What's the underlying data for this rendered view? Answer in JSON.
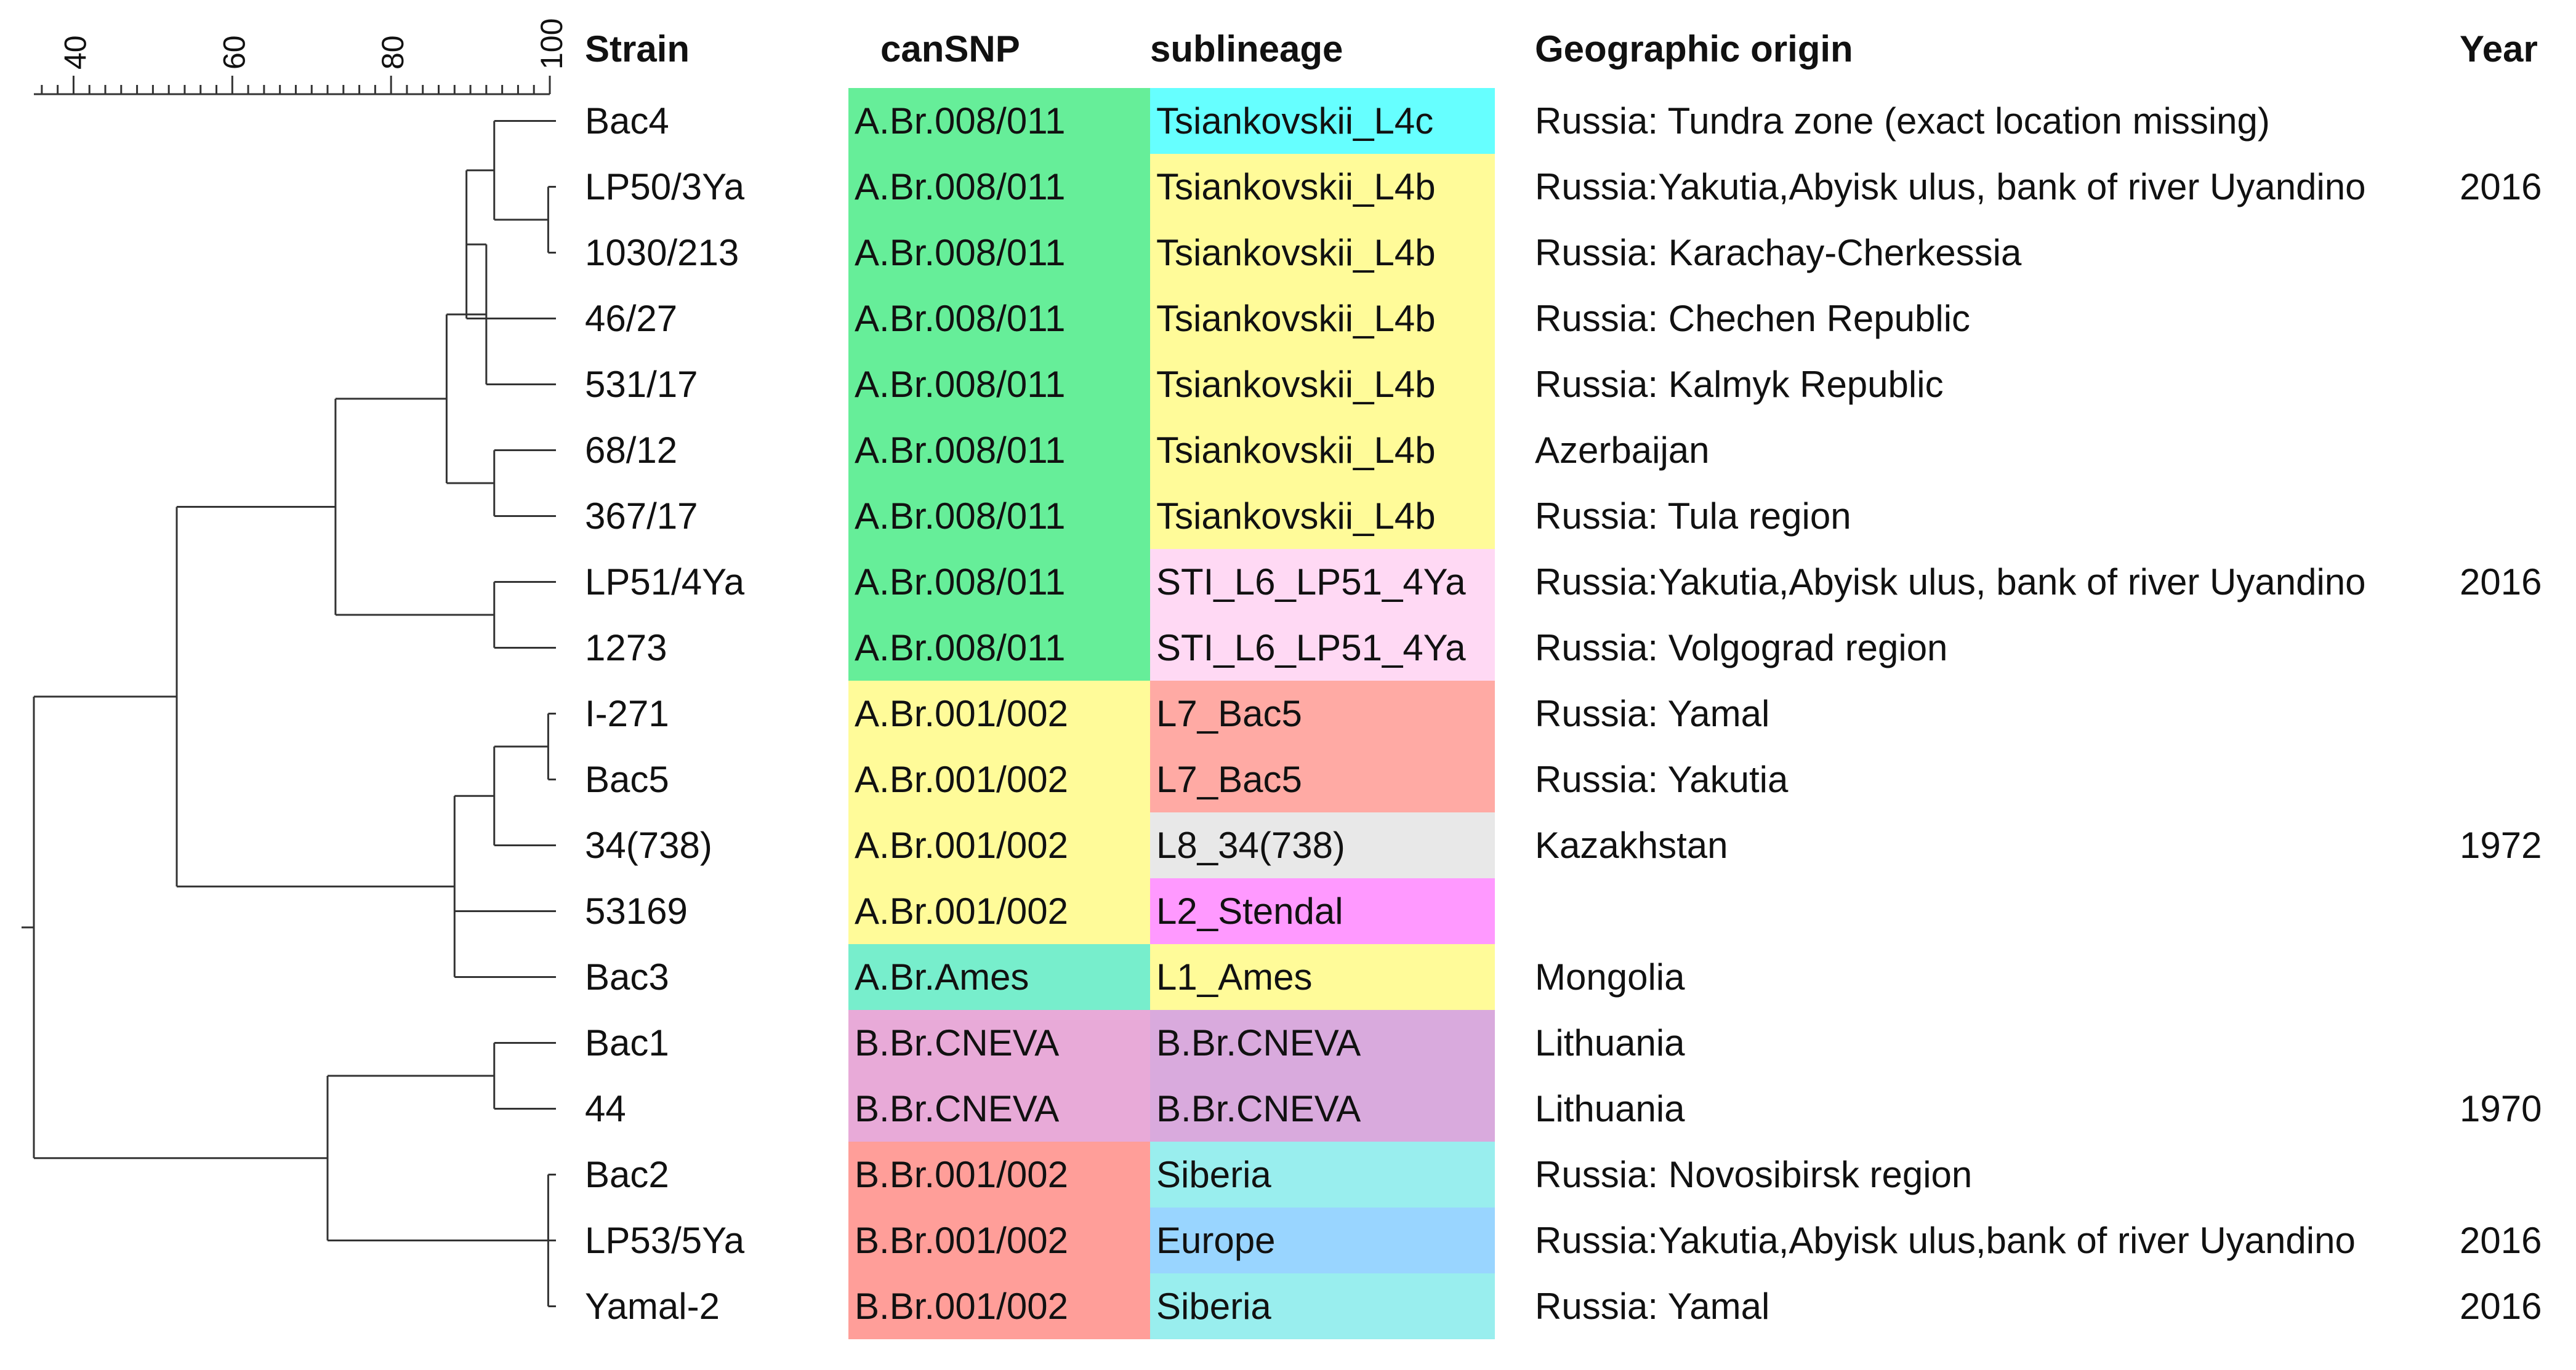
{
  "headers": {
    "strain": "Strain",
    "cansnp": "canSNP",
    "sublineage": "sublineage",
    "geo": "Geographic origin",
    "year": "Year"
  },
  "scale": {
    "ticks": [
      "40",
      "60",
      "80",
      "100"
    ],
    "min": 35,
    "max": 100
  },
  "colors": {
    "canSNP": {
      "A.Br.008/011": "#66ee99",
      "A.Br.001/002": "#fffb99",
      "A.Br.Ames": "#77eecc",
      "B.Br.CNEVA": "#e8aad8",
      "B.Br.001/002": "#ff9e99"
    },
    "sublineage": {
      "Tsiankovskii_L4c": "#66ffff",
      "Tsiankovskii_L4b": "#fffb99",
      "STI_L6_LP51_4Ya": "#ffd9f4",
      "L7_Bac5": "#ffaaa4",
      "L8_34(738)": "#e8e8e8",
      "L2_Stendal": "#ff99ff",
      "L1_Ames": "#fffb99",
      "B.Br.CNEVA": "#d9aadd",
      "Siberia": "#99eeee",
      "Europe": "#99d5ff"
    }
  },
  "rows": [
    {
      "strain": "Bac4",
      "cansnp": "A.Br.008/011",
      "sublineage": "Tsiankovskii_L4c",
      "geo": "Russia: Tundra zone (exact location missing)",
      "year": ""
    },
    {
      "strain": "LP50/3Ya",
      "cansnp": "A.Br.008/011",
      "sublineage": "Tsiankovskii_L4b",
      "geo": "Russia:Yakutia,Abyisk ulus, bank of river Uyandino",
      "year": "2016"
    },
    {
      "strain": "1030/213",
      "cansnp": "A.Br.008/011",
      "sublineage": "Tsiankovskii_L4b",
      "geo": "Russia: Karachay-Cherkessia",
      "year": ""
    },
    {
      "strain": "46/27",
      "cansnp": "A.Br.008/011",
      "sublineage": "Tsiankovskii_L4b",
      "geo": "Russia: Chechen Republic",
      "year": ""
    },
    {
      "strain": "531/17",
      "cansnp": "A.Br.008/011",
      "sublineage": "Tsiankovskii_L4b",
      "geo": "Russia: Kalmyk Republic",
      "year": ""
    },
    {
      "strain": "68/12",
      "cansnp": "A.Br.008/011",
      "sublineage": "Tsiankovskii_L4b",
      "geo": "Azerbaijan",
      "year": ""
    },
    {
      "strain": "367/17",
      "cansnp": "A.Br.008/011",
      "sublineage": "Tsiankovskii_L4b",
      "geo": "Russia: Tula region",
      "year": ""
    },
    {
      "strain": "LP51/4Ya",
      "cansnp": "A.Br.008/011",
      "sublineage": "STI_L6_LP51_4Ya",
      "geo": "Russia:Yakutia,Abyisk ulus, bank of river Uyandino",
      "year": "2016"
    },
    {
      "strain": "1273",
      "cansnp": "A.Br.008/011",
      "sublineage": "STI_L6_LP51_4Ya",
      "geo": "Russia: Volgograd region",
      "year": ""
    },
    {
      "strain": "I-271",
      "cansnp": "A.Br.001/002",
      "sublineage": "L7_Bac5",
      "geo": "Russia: Yamal",
      "year": ""
    },
    {
      "strain": "Bac5",
      "cansnp": "A.Br.001/002",
      "sublineage": "L7_Bac5",
      "geo": "Russia: Yakutia",
      "year": ""
    },
    {
      "strain": "34(738)",
      "cansnp": "A.Br.001/002",
      "sublineage": "L8_34(738)",
      "geo": "Kazakhstan",
      "year": "1972"
    },
    {
      "strain": "53169",
      "cansnp": "A.Br.001/002",
      "sublineage": "L2_Stendal",
      "geo": "",
      "year": ""
    },
    {
      "strain": "Bac3",
      "cansnp": "A.Br.Ames",
      "sublineage": "L1_Ames",
      "geo": "Mongolia",
      "year": ""
    },
    {
      "strain": "Bac1",
      "cansnp": "B.Br.CNEVA",
      "sublineage": "B.Br.CNEVA",
      "geo": "Lithuania",
      "year": ""
    },
    {
      "strain": "44",
      "cansnp": "B.Br.CNEVA",
      "sublineage": "B.Br.CNEVA",
      "geo": "Lithuania",
      "year": "1970"
    },
    {
      "strain": "Bac2",
      "cansnp": "B.Br.001/002",
      "sublineage": "Siberia",
      "geo": "Russia: Novosibirsk region",
      "year": ""
    },
    {
      "strain": "LP53/5Ya",
      "cansnp": "B.Br.001/002",
      "sublineage": "Europe",
      "geo": "Russia:Yakutia,Abyisk ulus,bank of river Uyandino",
      "year": "2016"
    },
    {
      "strain": "Yamal-2",
      "cansnp": "B.Br.001/002",
      "sublineage": "Siberia",
      "geo": "Russia: Yamal",
      "year": "2016"
    }
  ]
}
